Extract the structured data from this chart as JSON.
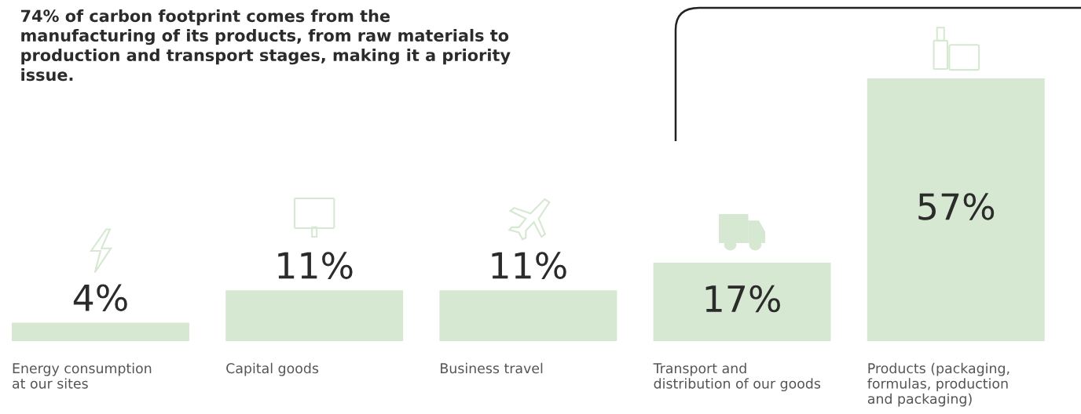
{
  "chart_data": {
    "type": "bar",
    "title": "74% of carbon footprint comes from the manufacturing of its products, from raw materials to production and transport stages, making it a priority issue.",
    "categories": [
      "Energy consumption\nat our sites",
      "Capital goods",
      "Business travel",
      "Transport and\ndistribution of our goods",
      "Products (packaging,\nformulas, production\nand packaging)"
    ],
    "values": [
      4,
      11,
      11,
      17,
      57
    ],
    "value_labels": [
      "4%",
      "11%",
      "11%",
      "17%",
      "57%"
    ],
    "color": "#d6e8d1"
  }
}
